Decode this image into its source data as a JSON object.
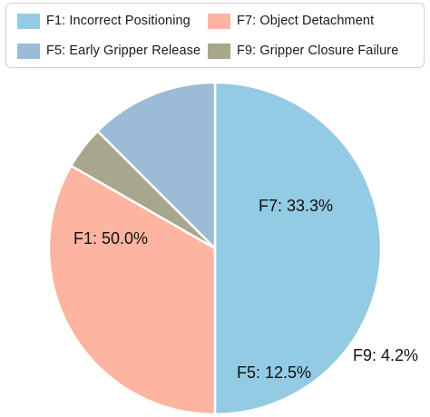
{
  "chart_data": {
    "type": "pie",
    "legend_position": "top",
    "slices": [
      {
        "label": "F1: Incorrect Positioning",
        "short": "F1",
        "value": 50.0,
        "pct_label": "F1: 50.0%",
        "color": "#93cae4"
      },
      {
        "label": "F7: Object Detachment",
        "short": "F7",
        "value": 33.3,
        "pct_label": "F7: 33.3%",
        "color": "#fdb4a0"
      },
      {
        "label": "F9: Gripper Closure Failure",
        "short": "F9",
        "value": 4.2,
        "pct_label": "F9: 4.2%",
        "color": "#a8a68c"
      },
      {
        "label": "F5: Early Gripper Release",
        "short": "F5",
        "value": 12.5,
        "pct_label": "F5: 12.5%",
        "color": "#9bbbd6"
      }
    ],
    "legend": [
      {
        "label": "F1: Incorrect Positioning",
        "color": "#93cae4"
      },
      {
        "label": "F7: Object Detachment",
        "color": "#fdb4a0"
      },
      {
        "label": "F5: Early Gripper Release",
        "color": "#9bbbd6"
      },
      {
        "label": "F9: Gripper Closure Failure",
        "color": "#a8a68c"
      }
    ]
  }
}
